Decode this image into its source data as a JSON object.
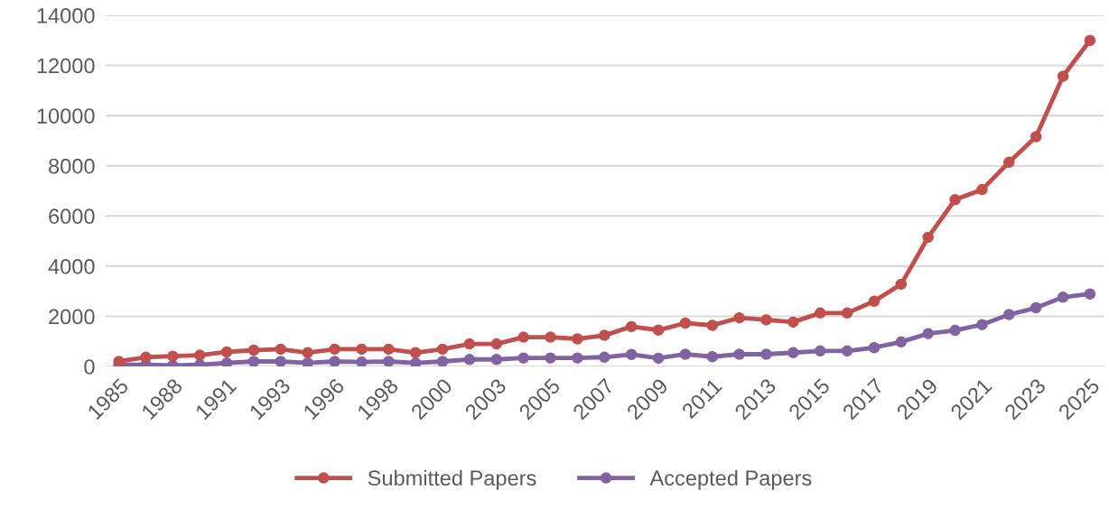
{
  "chart_data": {
    "type": "line",
    "categories": [
      "1985",
      null,
      "1988",
      null,
      "1991",
      null,
      "1993",
      null,
      "1996",
      null,
      "1998",
      null,
      "2000",
      null,
      "2003",
      null,
      "2005",
      null,
      "2007",
      null,
      "2009",
      null,
      "2011",
      null,
      "2013",
      null,
      "2015",
      null,
      "2017",
      null,
      "2019",
      null,
      "2021",
      null,
      "2023",
      null,
      "2025"
    ],
    "series": [
      {
        "name": "Submitted Papers",
        "color": "#c0504d",
        "values": [
          200,
          370,
          410,
          450,
          580,
          650,
          690,
          550,
          690,
          690,
          690,
          550,
          690,
          900,
          900,
          1170,
          1170,
          1100,
          1240,
          1590,
          1450,
          1730,
          1640,
          1940,
          1860,
          1770,
          2130,
          2130,
          2600,
          3280,
          5150,
          6650,
          7050,
          8140,
          9160,
          11570,
          13000
        ]
      },
      {
        "name": "Accepted Papers",
        "color": "#8064a2",
        "values": [
          70,
          70,
          40,
          70,
          140,
          200,
          200,
          140,
          200,
          180,
          200,
          140,
          200,
          280,
          280,
          340,
          340,
          340,
          370,
          480,
          330,
          490,
          390,
          490,
          490,
          550,
          620,
          620,
          750,
          980,
          1310,
          1440,
          1670,
          2070,
          2340,
          2760,
          2890
        ]
      }
    ],
    "ylim": [
      0,
      14000
    ],
    "yticks": [
      0,
      2000,
      4000,
      6000,
      8000,
      10000,
      12000,
      14000
    ],
    "grid": "y",
    "legend": "bottom",
    "marker": "circle",
    "line_style": "solid"
  }
}
